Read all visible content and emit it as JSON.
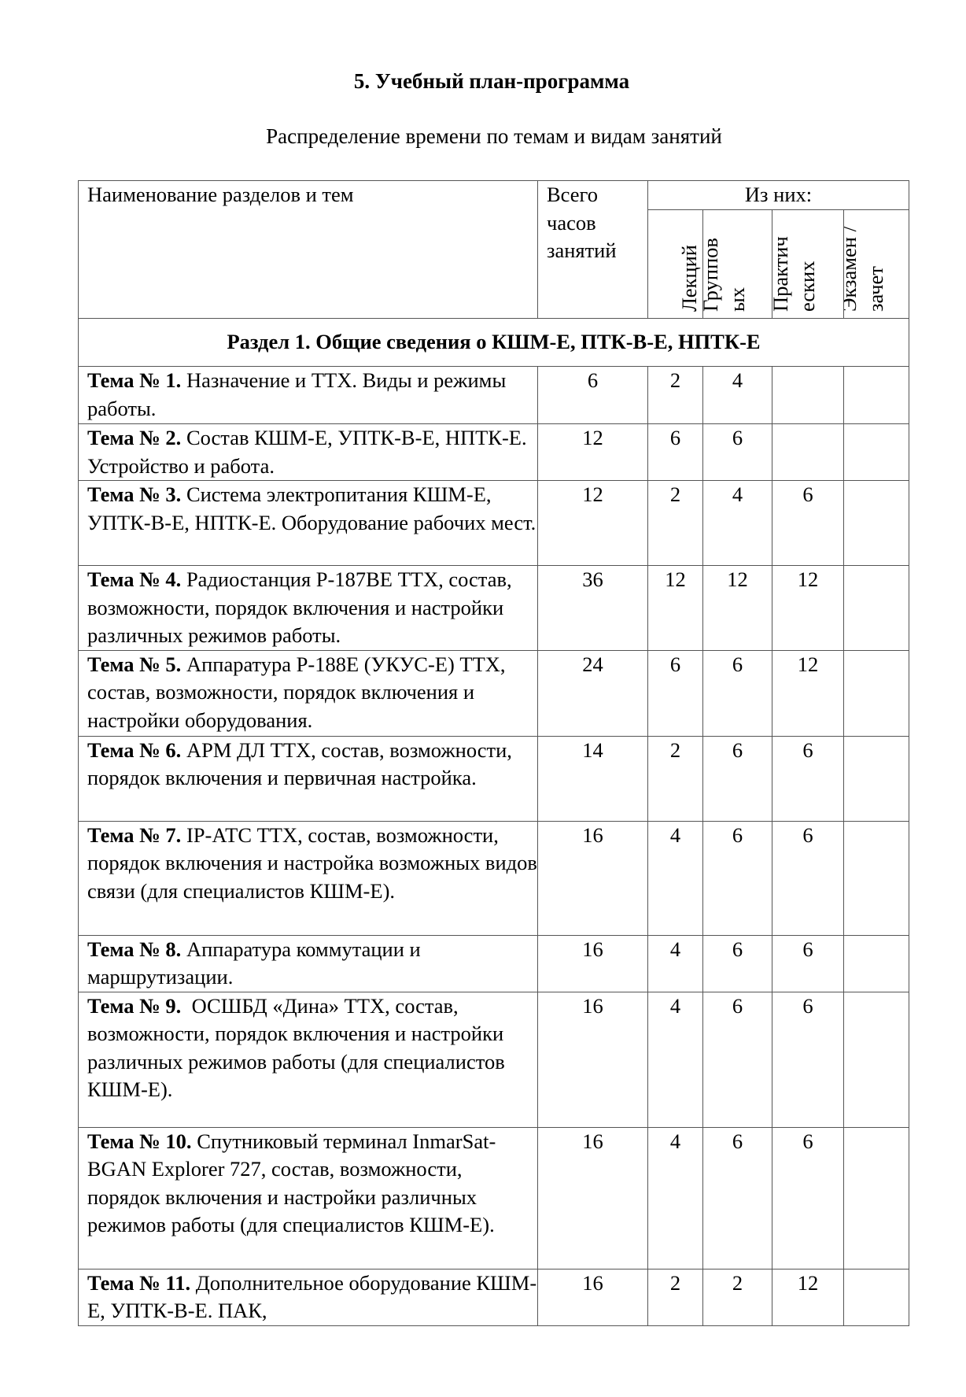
{
  "title": "5. Учебный план-программа",
  "subtitle": "Распределение времени по темам и видам занятий",
  "table": {
    "headers": {
      "name": "Наименование разделов и тем",
      "total": "Всего часов занятий",
      "of_them": "Из них:",
      "lectures": "Лекций",
      "group": "Группов ых",
      "practical": "Практич еских",
      "exam": "Экзамен /зачет"
    },
    "section1": "Раздел 1. Общие сведения о КШМ-Е, ПТК-В-Е, НПТК-Е",
    "rows": [
      {
        "label": "Тема № 1.",
        "text": " Назначение и ТТХ. Виды и режимы работы.",
        "total": "6",
        "lec": "2",
        "grp": "4",
        "prac": "",
        "exam": ""
      },
      {
        "label": "Тема № 2.",
        "text": " Состав КШМ-Е, УПТК-В-Е, НПТК-Е. Устройство и работа.",
        "total": "12",
        "lec": "6",
        "grp": "6",
        "prac": "",
        "exam": ""
      },
      {
        "label": "Тема № 3.",
        "text": " Система электропитания КШМ-Е, УПТК-В-Е, НПТК-Е. Оборудование рабочих мест.",
        "total": "12",
        "lec": "2",
        "grp": "4",
        "prac": "6",
        "exam": ""
      },
      {
        "label": "Тема № 4.",
        "text": " Радиостанция Р-187ВЕ ТТХ, состав, возможности, порядок включения и настройки различных режимов работы.",
        "total": "36",
        "lec": "12",
        "grp": "12",
        "prac": "12",
        "exam": ""
      },
      {
        "label": "Тема № 5.",
        "text": " Аппаратура Р-188Е (УКУС-Е) ТТХ, состав, возможности, порядок включения и настройки оборудования.",
        "total": "24",
        "lec": "6",
        "grp": "6",
        "prac": "12",
        "exam": ""
      },
      {
        "label": "Тема № 6.",
        "text": " АРМ ДЛ ТТХ, состав, возможности, порядок включения и первичная настройка.",
        "total": "14",
        "lec": "2",
        "grp": "6",
        "prac": "6",
        "exam": ""
      },
      {
        "label": "Тема № 7.",
        "text": " IP-АТС ТТХ, состав, возможности, порядок включения и настройка возможных видов связи (для специалистов КШМ-Е).",
        "total": "16",
        "lec": "4",
        "grp": "6",
        "prac": "6",
        "exam": ""
      },
      {
        "label": "Тема № 8.",
        "text": " Аппаратура коммутации и маршрутизации.",
        "total": "16",
        "lec": "4",
        "grp": "6",
        "prac": "6",
        "exam": ""
      },
      {
        "label": "Тема № 9.",
        "text": "  ОСШБД «Дина» ТТХ, состав, возможности, порядок включения и настройки различных режимов работы (для специалистов КШМ-Е).",
        "total": "16",
        "lec": "4",
        "grp": "6",
        "prac": "6",
        "exam": ""
      },
      {
        "label": "Тема № 10.",
        "text": " Спутниковый терминал InmarSat-BGAN Explorer 727, состав, возможности, порядок включения и настройки различных режимов работы (для специалистов КШМ-Е).",
        "total": "16",
        "lec": "4",
        "grp": "6",
        "prac": "6",
        "exam": ""
      },
      {
        "label": "Тема № 11.",
        "text": " Дополнительное оборудование КШМ-Е, УПТК-В-Е. ПАК,",
        "total": "16",
        "lec": "2",
        "grp": "2",
        "prac": "12",
        "exam": ""
      }
    ]
  }
}
